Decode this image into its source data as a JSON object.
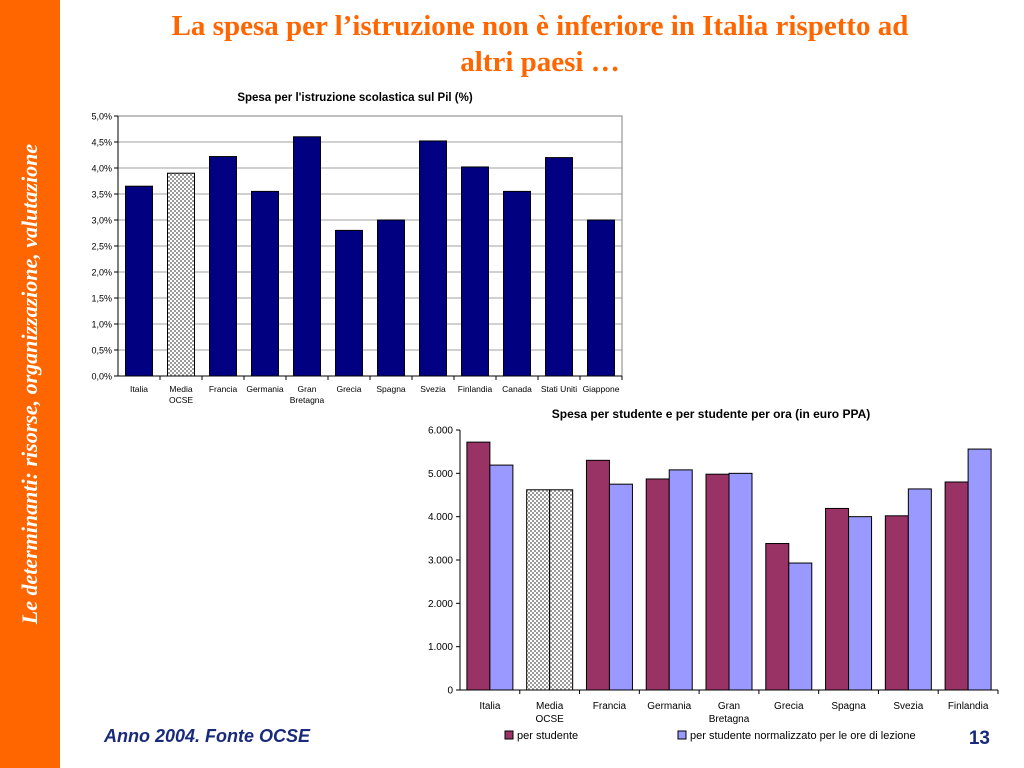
{
  "sidebar": {
    "text": "Le determinanti: risorse, organizzazione, valutazione"
  },
  "slide": {
    "title_line1": "La spesa per l’istruzione non è inferiore in Italia rispetto ad",
    "title_line2": "altri paesi …",
    "source": "Anno 2004. Fonte OCSE",
    "page_number": "13"
  },
  "colors": {
    "accent": "#FF6600",
    "bar_navy": "#000080",
    "bar_maroon": "#993366",
    "bar_lavender": "#9999FF",
    "ocse_pattern": "#b0b0b0"
  },
  "chart_data": [
    {
      "type": "bar",
      "title": "Spesa per l'istruzione scolastica sul Pil (%)",
      "categories": [
        "Italia",
        "Media OCSE",
        "Francia",
        "Germania",
        "Gran Bretagna",
        "Grecia",
        "Spagna",
        "Svezia",
        "Finlandia",
        "Canada",
        "Stati Uniti",
        "Giappone"
      ],
      "category_lines": [
        [
          "Italia"
        ],
        [
          "Media",
          "OCSE"
        ],
        [
          "Francia"
        ],
        [
          "Germania"
        ],
        [
          "Gran",
          "Bretagna"
        ],
        [
          "Grecia"
        ],
        [
          "Spagna"
        ],
        [
          "Svezia"
        ],
        [
          "Finlandia"
        ],
        [
          "Canada"
        ],
        [
          "Stati Uniti"
        ],
        [
          "Giappone"
        ]
      ],
      "values": [
        3.65,
        3.9,
        4.22,
        3.55,
        4.6,
        2.8,
        3.0,
        4.52,
        4.02,
        3.55,
        4.2,
        3.0
      ],
      "highlighted_category": "Media OCSE",
      "ylim": [
        0,
        5
      ],
      "yticks": [
        "0,0%",
        "0,5%",
        "1,0%",
        "1,5%",
        "2,0%",
        "2,5%",
        "3,0%",
        "3,5%",
        "4,0%",
        "4,5%",
        "5,0%"
      ],
      "grid": true,
      "legend": "none"
    },
    {
      "type": "bar",
      "title": "Spesa per studente e per studente per ora (in euro PPA)",
      "categories": [
        "Italia",
        "Media OCSE",
        "Francia",
        "Germania",
        "Gran Bretagna",
        "Grecia",
        "Spagna",
        "Svezia",
        "Finlandia"
      ],
      "category_lines": [
        [
          "Italia"
        ],
        [
          "Media",
          "OCSE"
        ],
        [
          "Francia"
        ],
        [
          "Germania"
        ],
        [
          "Gran",
          "Bretagna"
        ],
        [
          "Grecia"
        ],
        [
          "Spagna"
        ],
        [
          "Svezia"
        ],
        [
          "Finlandia"
        ]
      ],
      "series": [
        {
          "name": "per studente",
          "values": [
            5720,
            4620,
            5300,
            4870,
            4980,
            3380,
            4190,
            4020,
            4800
          ]
        },
        {
          "name": "per studente normalizzato per le ore di lezione",
          "values": [
            5190,
            4620,
            4750,
            5080,
            5000,
            2930,
            4000,
            4640,
            5560
          ]
        }
      ],
      "highlighted_category": "Media OCSE",
      "ylim": [
        0,
        6000
      ],
      "yticks": [
        "0",
        "1.000",
        "2.000",
        "3.000",
        "4.000",
        "5.000",
        "6.000"
      ],
      "grid": false,
      "legend": "bottom"
    }
  ]
}
